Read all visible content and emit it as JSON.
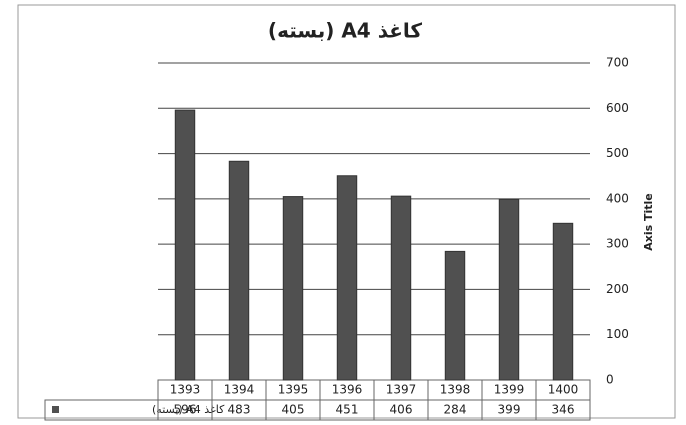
{
  "chart_data": {
    "type": "bar",
    "title": "کاغذ A4 (بسته)",
    "y_axis_label": "Axis Title",
    "categories": [
      "1393",
      "1394",
      "1395",
      "1396",
      "1397",
      "1398",
      "1399",
      "1400"
    ],
    "series": [
      {
        "name": "کاغذ A4 (بسته)",
        "color": "#505050",
        "values": [
          596,
          483,
          405,
          451,
          406,
          284,
          399,
          346
        ]
      }
    ],
    "ylim": [
      0,
      700
    ],
    "yticks": [
      0,
      100,
      200,
      300,
      400,
      500,
      600,
      700
    ],
    "grid": true
  }
}
